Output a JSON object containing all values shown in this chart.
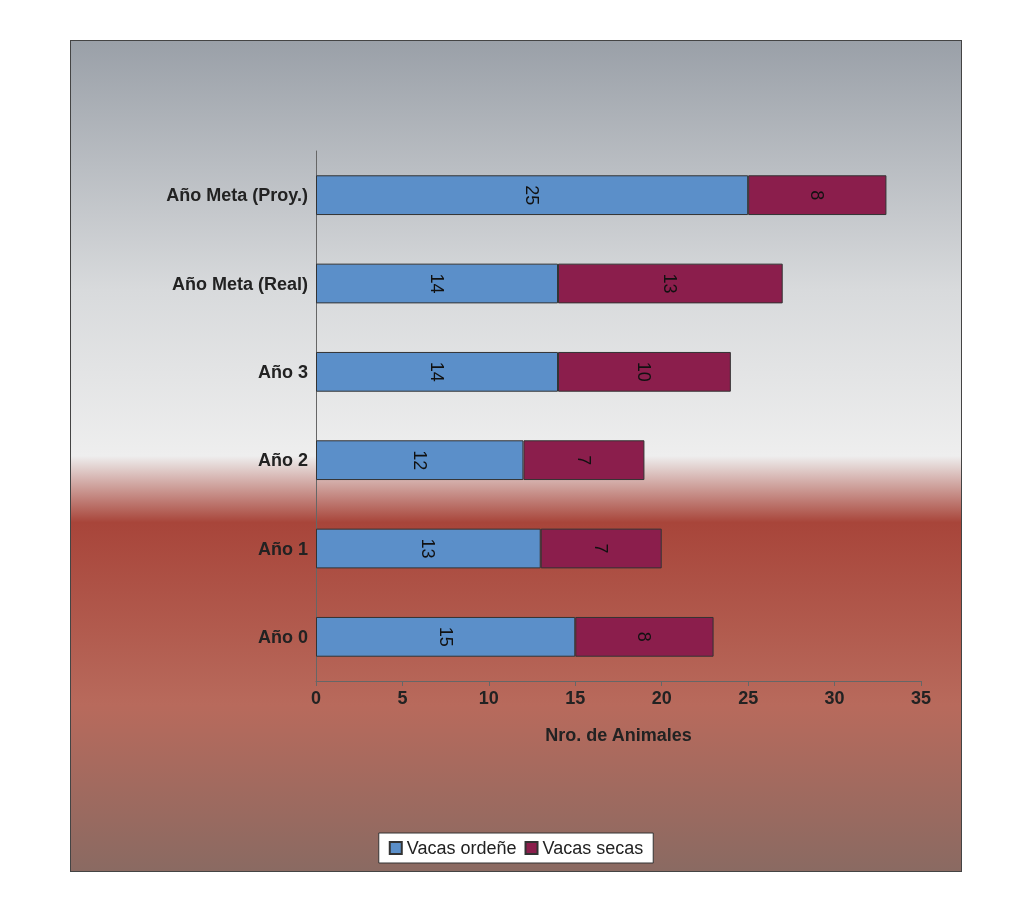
{
  "chart_data": {
    "type": "bar",
    "orientation": "horizontal",
    "stacked": true,
    "categories": [
      "Año Meta (Proy.)",
      "Año Meta (Real)",
      "Año 3",
      "Año 2",
      "Año 1",
      "Año 0"
    ],
    "series": [
      {
        "name": "Vacas ordeñe",
        "color": "#5b8fc9",
        "values": [
          25,
          14,
          14,
          12,
          13,
          15
        ]
      },
      {
        "name": "Vacas secas",
        "color": "#8b1e4c",
        "values": [
          8,
          13,
          10,
          7,
          7,
          8
        ]
      }
    ],
    "xlabel": "Nro. de Animales",
    "xlim": [
      0,
      35
    ],
    "xticks": [
      0,
      5,
      10,
      15,
      20,
      25,
      30,
      35
    ],
    "data_labels": true,
    "grid": false,
    "legend": "bottom"
  }
}
